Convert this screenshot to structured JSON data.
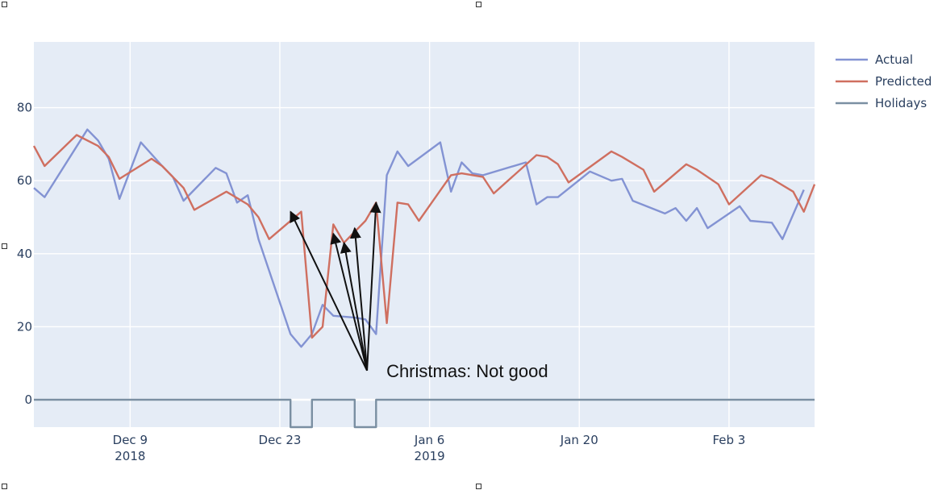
{
  "chart_data": {
    "type": "line",
    "title": "",
    "xlabel": "",
    "ylabel": "",
    "x_range": [
      "2018-11-30",
      "2019-02-11"
    ],
    "ylim": [
      -7.5,
      98
    ],
    "grid": true,
    "legend_position": "top-right",
    "x_ticks": [
      {
        "date": "2018-12-09",
        "label": "Dec 9",
        "year": "2018"
      },
      {
        "date": "2018-12-23",
        "label": "Dec 23",
        "year": ""
      },
      {
        "date": "2019-01-06",
        "label": "Jan 6",
        "year": "2019"
      },
      {
        "date": "2019-01-20",
        "label": "Jan 20",
        "year": ""
      },
      {
        "date": "2019-02-03",
        "label": "Feb 3",
        "year": ""
      }
    ],
    "y_ticks": [
      0,
      20,
      40,
      60,
      80
    ],
    "series": [
      {
        "name": "Actual",
        "color": "#8393d3",
        "points": [
          [
            "2018-11-30",
            58
          ],
          [
            "2018-12-01",
            55.5
          ],
          [
            "2018-12-05",
            74
          ],
          [
            "2018-12-06",
            71
          ],
          [
            "2018-12-07",
            66
          ],
          [
            "2018-12-08",
            55
          ],
          [
            "2018-12-10",
            70.5
          ],
          [
            "2018-12-12",
            64
          ],
          [
            "2018-12-13",
            61
          ],
          [
            "2018-12-14",
            54.5
          ],
          [
            "2018-12-17",
            63.5
          ],
          [
            "2018-12-18",
            62
          ],
          [
            "2018-12-19",
            54
          ],
          [
            "2018-12-20",
            56
          ],
          [
            "2018-12-21",
            44
          ],
          [
            "2018-12-24",
            18
          ],
          [
            "2018-12-25",
            14.5
          ],
          [
            "2018-12-26",
            18
          ],
          [
            "2018-12-27",
            26
          ],
          [
            "2018-12-28",
            23
          ],
          [
            "2018-12-30",
            22.5
          ],
          [
            "2018-12-31",
            22
          ],
          [
            "2019-01-01",
            18
          ],
          [
            "2019-01-02",
            61.5
          ],
          [
            "2019-01-03",
            68
          ],
          [
            "2019-01-04",
            64
          ],
          [
            "2019-01-07",
            70.5
          ],
          [
            "2019-01-08",
            57
          ],
          [
            "2019-01-09",
            65
          ],
          [
            "2019-01-10",
            62
          ],
          [
            "2019-01-11",
            61.5
          ],
          [
            "2019-01-15",
            65
          ],
          [
            "2019-01-16",
            53.5
          ],
          [
            "2019-01-17",
            55.5
          ],
          [
            "2019-01-18",
            55.5
          ],
          [
            "2019-01-21",
            62.5
          ],
          [
            "2019-01-23",
            60
          ],
          [
            "2019-01-24",
            60.5
          ],
          [
            "2019-01-25",
            54.5
          ],
          [
            "2019-01-28",
            51
          ],
          [
            "2019-01-29",
            52.5
          ],
          [
            "2019-01-30",
            49
          ],
          [
            "2019-01-31",
            52.5
          ],
          [
            "2019-02-01",
            47
          ],
          [
            "2019-02-04",
            53
          ],
          [
            "2019-02-05",
            49
          ],
          [
            "2019-02-07",
            48.5
          ],
          [
            "2019-02-08",
            44
          ],
          [
            "2019-02-10",
            57.5
          ]
        ]
      },
      {
        "name": "Predicted",
        "color": "#cf6f60",
        "points": [
          [
            "2018-11-30",
            69.5
          ],
          [
            "2018-12-01",
            64
          ],
          [
            "2018-12-04",
            72.5
          ],
          [
            "2018-12-06",
            69.5
          ],
          [
            "2018-12-07",
            66.5
          ],
          [
            "2018-12-08",
            60.5
          ],
          [
            "2018-12-11",
            66
          ],
          [
            "2018-12-12",
            64
          ],
          [
            "2018-12-14",
            58
          ],
          [
            "2018-12-15",
            52
          ],
          [
            "2018-12-18",
            57
          ],
          [
            "2018-12-20",
            53.5
          ],
          [
            "2018-12-21",
            50
          ],
          [
            "2018-12-22",
            44
          ],
          [
            "2018-12-25",
            51.5
          ],
          [
            "2018-12-26",
            17
          ],
          [
            "2018-12-27",
            20
          ],
          [
            "2018-12-28",
            48
          ],
          [
            "2018-12-29",
            43
          ],
          [
            "2018-12-31",
            49
          ],
          [
            "2019-01-01",
            54
          ],
          [
            "2019-01-02",
            21
          ],
          [
            "2019-01-03",
            54
          ],
          [
            "2019-01-04",
            53.5
          ],
          [
            "2019-01-05",
            49
          ],
          [
            "2019-01-08",
            61.5
          ],
          [
            "2019-01-09",
            62
          ],
          [
            "2019-01-11",
            61
          ],
          [
            "2019-01-12",
            56.5
          ],
          [
            "2019-01-16",
            67
          ],
          [
            "2019-01-17",
            66.5
          ],
          [
            "2019-01-18",
            64.5
          ],
          [
            "2019-01-19",
            59.5
          ],
          [
            "2019-01-23",
            68
          ],
          [
            "2019-01-24",
            66.5
          ],
          [
            "2019-01-26",
            63
          ],
          [
            "2019-01-27",
            57
          ],
          [
            "2019-01-30",
            64.5
          ],
          [
            "2019-01-31",
            63
          ],
          [
            "2019-02-02",
            59
          ],
          [
            "2019-02-03",
            53.5
          ],
          [
            "2019-02-06",
            61.5
          ],
          [
            "2019-02-07",
            60.5
          ],
          [
            "2019-02-09",
            57
          ],
          [
            "2019-02-10",
            51.5
          ],
          [
            "2019-02-11",
            59
          ]
        ]
      },
      {
        "name": "Holidays",
        "color": "#7a8fa2",
        "points": [
          [
            "2018-11-30",
            0
          ],
          [
            "2018-12-24",
            0
          ],
          [
            "2018-12-24",
            -7.5
          ],
          [
            "2018-12-26",
            -7.5
          ],
          [
            "2018-12-26",
            0
          ],
          [
            "2018-12-30",
            0
          ],
          [
            "2018-12-30",
            -7.5
          ],
          [
            "2019-01-01",
            -7.5
          ],
          [
            "2019-01-01",
            0
          ],
          [
            "2019-02-11",
            0
          ]
        ]
      }
    ],
    "annotation": {
      "text": "Christmas: Not good",
      "tail": [
        "2018-12-31",
        8
      ],
      "heads": [
        [
          "2018-12-24",
          51.5
        ],
        [
          "2018-12-28",
          45.5
        ],
        [
          "2018-12-29",
          43
        ],
        [
          "2018-12-30",
          47
        ],
        [
          "2019-01-01",
          54
        ]
      ]
    }
  }
}
